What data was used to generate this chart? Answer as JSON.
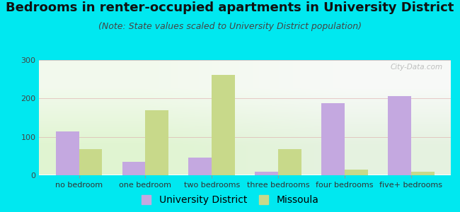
{
  "title": "Bedrooms in renter-occupied apartments in University District",
  "subtitle": "(Note: State values scaled to University District population)",
  "categories": [
    "no bedroom",
    "one bedroom",
    "two bedrooms",
    "three bedrooms",
    "four bedrooms",
    "five+ bedrooms"
  ],
  "university_district": [
    113,
    35,
    45,
    8,
    188,
    207
  ],
  "missoula": [
    68,
    170,
    262,
    68,
    13,
    8
  ],
  "ud_color": "#c4a8e0",
  "missoula_color": "#c8d98a",
  "background_outer": "#00e8f0",
  "ylim": [
    0,
    300
  ],
  "yticks": [
    0,
    100,
    200,
    300
  ],
  "bar_width": 0.35,
  "title_fontsize": 13,
  "subtitle_fontsize": 9,
  "legend_fontsize": 10,
  "tick_fontsize": 8,
  "watermark": "City-Data.com"
}
